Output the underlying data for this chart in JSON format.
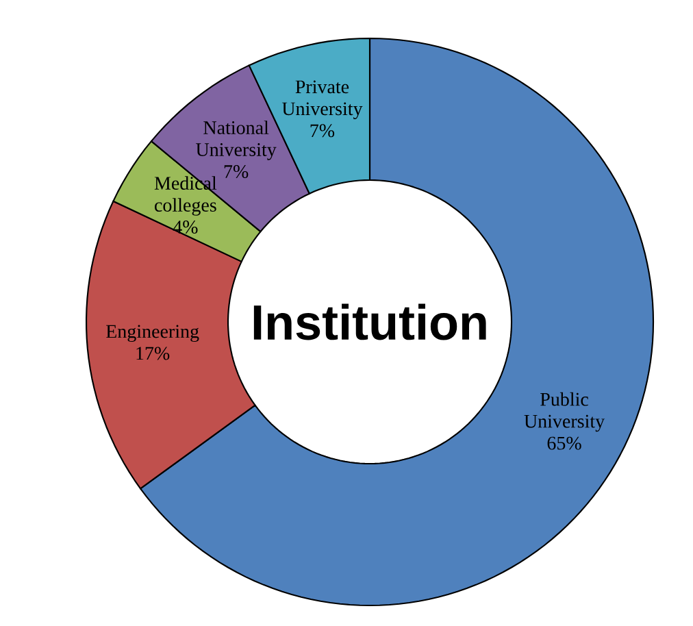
{
  "chart_data": {
    "type": "donut",
    "title": "Institution",
    "categories": [
      "Public University",
      "Engineering",
      "Medical colleges",
      "National University",
      "Private University"
    ],
    "values": [
      65,
      17,
      4,
      7,
      7
    ],
    "value_labels": [
      "65%",
      "17%",
      "4%",
      "7%",
      "7%"
    ],
    "colors": [
      "#4f81bd",
      "#c0504d",
      "#9bbb59",
      "#8064a2",
      "#4bacc6"
    ]
  }
}
